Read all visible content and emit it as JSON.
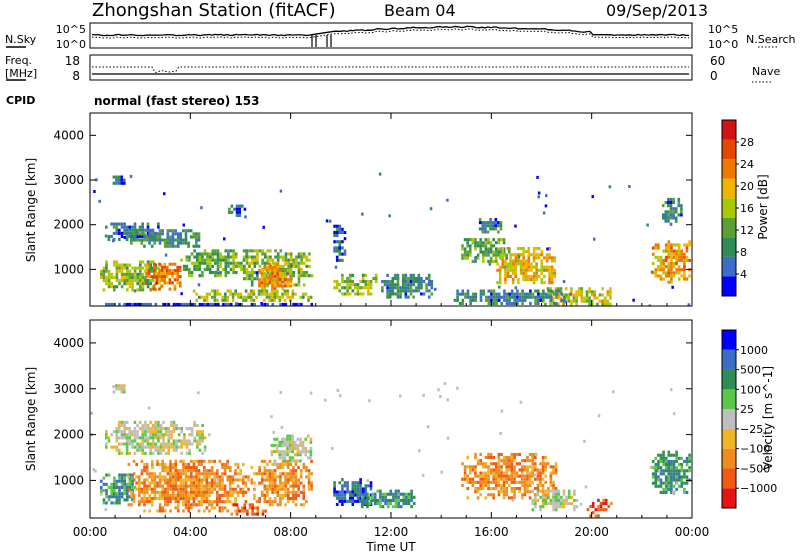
{
  "header": {
    "title": "Zhongshan Station (fitACF)",
    "beam": "Beam 04",
    "date": "09/Sep/2013"
  },
  "strip_labels": {
    "nsky": "N.Sky",
    "nsearch": "N.Search",
    "freq_line1": "Freq.",
    "freq_line2": "[MHz]",
    "nave": "Nave",
    "cpid": "CPID",
    "cpid_value": "normal (fast stereo) 153"
  },
  "strip_ticks": {
    "nsky_left": [
      "10^5",
      "10^0"
    ],
    "nsky_right": [
      "10^5",
      "10^0"
    ],
    "freq_left": [
      "18",
      "8"
    ],
    "nave_right": [
      "60",
      "0"
    ]
  },
  "xaxis": {
    "label": "Time UT",
    "ticks": [
      "00:00",
      "04:00",
      "08:00",
      "12:00",
      "16:00",
      "20:00",
      "00:00"
    ]
  },
  "colors": {
    "power_scale": [
      "#0000ff",
      "#3c6ec8",
      "#2f8c55",
      "#5aa032",
      "#a8c800",
      "#f0b400",
      "#f07800",
      "#e64600",
      "#d21414"
    ],
    "velocity_scale": [
      "#e61414",
      "#f05a14",
      "#f08c1e",
      "#f0b428",
      "#bebebe",
      "#5ac846",
      "#2f8c55",
      "#3c6ec8",
      "#0000ff"
    ],
    "gray": "#bebebe"
  },
  "chart_data": [
    {
      "type": "heatmap",
      "name": "power-panel",
      "ylabel": "Slant Range [km]",
      "yticks": [
        1000,
        2000,
        3000,
        4000
      ],
      "ylim": [
        180,
        4500
      ],
      "xlim_hours": [
        0,
        24
      ],
      "colorbar": {
        "label": "Power [dB]",
        "ticks": [
          4,
          8,
          12,
          16,
          20,
          24,
          28
        ],
        "range": [
          0,
          32
        ]
      },
      "blobs": [
        {
          "t0": 0.6,
          "t1": 2.8,
          "r0": 1650,
          "r1": 2050,
          "value": 7
        },
        {
          "t0": 1.6,
          "t1": 4.5,
          "r0": 1500,
          "r1": 1900,
          "value": 9
        },
        {
          "t0": 0.4,
          "t1": 3.0,
          "r0": 500,
          "r1": 1200,
          "value": 14
        },
        {
          "t0": 2.2,
          "t1": 3.6,
          "r0": 550,
          "r1": 1150,
          "value": 24
        },
        {
          "t0": 3.6,
          "t1": 6.4,
          "r0": 800,
          "r1": 1450,
          "value": 12
        },
        {
          "t0": 6.0,
          "t1": 8.9,
          "r0": 600,
          "r1": 1450,
          "value": 14
        },
        {
          "t0": 6.7,
          "t1": 8.2,
          "r0": 550,
          "r1": 1150,
          "value": 21
        },
        {
          "t0": 4.1,
          "t1": 8.9,
          "r0": 250,
          "r1": 550,
          "value": 15
        },
        {
          "t0": 0.5,
          "t1": 8.9,
          "r0": 190,
          "r1": 250,
          "value": 3
        },
        {
          "t0": 9.7,
          "t1": 11.5,
          "r0": 400,
          "r1": 900,
          "value": 14
        },
        {
          "t0": 11.5,
          "t1": 13.7,
          "r0": 350,
          "r1": 900,
          "value": 8
        },
        {
          "t0": 9.7,
          "t1": 10.2,
          "r0": 1200,
          "r1": 2000,
          "value": 6
        },
        {
          "t0": 14.8,
          "t1": 16.8,
          "r0": 1150,
          "r1": 1700,
          "value": 12
        },
        {
          "t0": 16.2,
          "t1": 18.6,
          "r0": 700,
          "r1": 1500,
          "value": 19
        },
        {
          "t0": 18.0,
          "t1": 20.8,
          "r0": 200,
          "r1": 600,
          "value": 17
        },
        {
          "t0": 14.5,
          "t1": 19.0,
          "r0": 200,
          "r1": 550,
          "value": 8
        },
        {
          "t0": 22.4,
          "t1": 24.0,
          "r0": 650,
          "r1": 1650,
          "value": 21
        },
        {
          "t0": 22.8,
          "t1": 23.6,
          "r0": 2000,
          "r1": 2600,
          "value": 8
        },
        {
          "t0": 5.5,
          "t1": 6.2,
          "r0": 2200,
          "r1": 2450,
          "value": 6
        },
        {
          "t0": 0.9,
          "t1": 1.4,
          "r0": 2900,
          "r1": 3100,
          "value": 5
        },
        {
          "t0": 15.4,
          "t1": 16.4,
          "r0": 1800,
          "r1": 2150,
          "value": 7
        }
      ]
    },
    {
      "type": "heatmap",
      "name": "velocity-panel",
      "ylabel": "Slant Range [km]",
      "yticks": [
        1000,
        2000,
        3000,
        4000
      ],
      "ylim": [
        180,
        4500
      ],
      "xlim_hours": [
        0,
        24
      ],
      "colorbar": {
        "label": "Velocity [m s^-1]",
        "ticks": [
          "1000",
          "500",
          "100",
          "25",
          "−25",
          "−100",
          "−500",
          "−1000"
        ]
      },
      "blobs": [
        {
          "t0": 0.6,
          "t1": 4.6,
          "r0": 1550,
          "r1": 2300,
          "cls": 4
        },
        {
          "t0": 0.4,
          "t1": 1.8,
          "r0": 500,
          "r1": 1150,
          "cls": 6
        },
        {
          "t0": 1.5,
          "t1": 6.4,
          "r0": 300,
          "r1": 1450,
          "cls": 2
        },
        {
          "t0": 6.4,
          "t1": 8.9,
          "r0": 450,
          "r1": 1450,
          "cls": 2
        },
        {
          "t0": 7.2,
          "t1": 8.9,
          "r0": 1400,
          "r1": 2000,
          "cls": 4
        },
        {
          "t0": 5.6,
          "t1": 7.0,
          "r0": 200,
          "r1": 500,
          "cls": 1
        },
        {
          "t0": 9.7,
          "t1": 11.3,
          "r0": 450,
          "r1": 1050,
          "cls": 7
        },
        {
          "t0": 10.8,
          "t1": 13.0,
          "r0": 400,
          "r1": 800,
          "cls": 6
        },
        {
          "t0": 14.8,
          "t1": 18.6,
          "r0": 600,
          "r1": 1600,
          "cls": 2
        },
        {
          "t0": 17.6,
          "t1": 19.5,
          "r0": 300,
          "r1": 800,
          "cls": 4
        },
        {
          "t0": 19.8,
          "t1": 20.8,
          "r0": 200,
          "r1": 600,
          "cls": 1
        },
        {
          "t0": 22.4,
          "t1": 24.0,
          "r0": 700,
          "r1": 1650,
          "cls": 6
        },
        {
          "t0": 0.9,
          "t1": 1.4,
          "r0": 2900,
          "r1": 3100,
          "cls": 4
        }
      ]
    }
  ]
}
